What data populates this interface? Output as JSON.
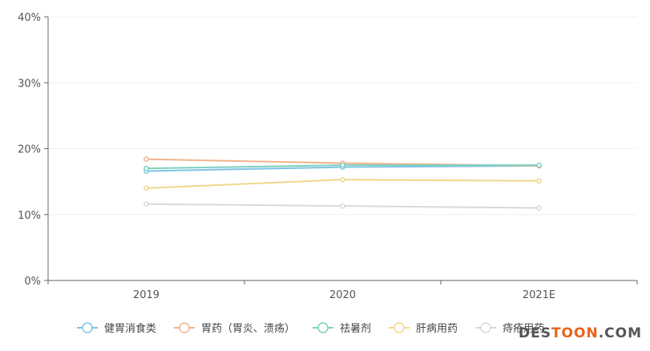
{
  "chart_data": {
    "type": "line",
    "categories": [
      "2019",
      "2020",
      "2021E"
    ],
    "ylim": [
      0,
      40
    ],
    "yticks": [
      "0%",
      "10%",
      "20%",
      "30%",
      "40%"
    ],
    "grid": true,
    "legend_position": "bottom",
    "series": [
      {
        "name": "健胃消食类",
        "color": "#7ec4e4",
        "values": [
          16.6,
          17.2,
          17.4
        ]
      },
      {
        "name": "胃药（胃炎、溃疡）",
        "color": "#f0b48c",
        "values": [
          18.4,
          17.8,
          17.4
        ]
      },
      {
        "name": "祛暑剂",
        "color": "#80cfc0",
        "values": [
          17.0,
          17.5,
          17.5
        ]
      },
      {
        "name": "肝病用药",
        "color": "#f0d88c",
        "values": [
          14.0,
          15.3,
          15.1
        ]
      },
      {
        "name": "痔疮用药",
        "color": "#d9d9d9",
        "values": [
          11.6,
          11.3,
          11.0
        ]
      }
    ]
  },
  "watermark": {
    "prefix": "DES",
    "accent": "TOON",
    "suffix": ".COM"
  }
}
